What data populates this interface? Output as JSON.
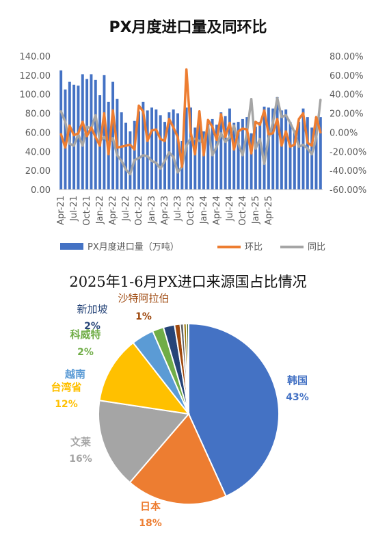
{
  "chart_data": [
    {
      "type": "bar",
      "title": "PX月度进口量及同环比",
      "x_tick_labels": [
        "Apr-21",
        "Jul-21",
        "Oct-21",
        "Jan-22",
        "Apr-22",
        "Jul-22",
        "Oct-22",
        "Jan-23",
        "Apr-23",
        "Jul-23",
        "Oct-23",
        "Jan-24",
        "Apr-24",
        "Jul-24",
        "Oct-24",
        "Jan-25",
        "Apr-25"
      ],
      "y_left": {
        "ylim": [
          0,
          140
        ],
        "ticks": [
          "0.00",
          "20.00",
          "40.00",
          "60.00",
          "80.00",
          "100.00",
          "120.00",
          "140.00"
        ]
      },
      "y_right": {
        "ylim": [
          -60,
          80
        ],
        "ticks": [
          "-60.00%",
          "-40.00%",
          "-20.00%",
          "0.00%",
          "20.00%",
          "40.00%",
          "60.00%",
          "80.00%"
        ]
      },
      "legend": [
        "PX月度进口量（万吨）",
        "环比",
        "同比"
      ],
      "legend_position": "bottom",
      "grid": false,
      "colors": {
        "bars": "#4472C4",
        "mom": "#ED7D31",
        "yoy": "#A5A5A5"
      },
      "series": [
        {
          "name": "PX月度进口量（万吨）",
          "axis": "left",
          "kind": "bar",
          "values": [
            125,
            105,
            113,
            110,
            109,
            121,
            116,
            121,
            115,
            99,
            120,
            92,
            113,
            95,
            81,
            70,
            61,
            72,
            82,
            92,
            83,
            86,
            84,
            78,
            71,
            81,
            84,
            80,
            51,
            86,
            86,
            65,
            80,
            61,
            69,
            74,
            68,
            81,
            77,
            85,
            70,
            71,
            74,
            76,
            59,
            66,
            71,
            87,
            86,
            85,
            97,
            83,
            84,
            71,
            62,
            71,
            85,
            76,
            65,
            76,
            76
          ]
        },
        {
          "name": "环比",
          "axis": "right",
          "kind": "line",
          "values": [
            -2,
            -16,
            7,
            -3,
            -1,
            11,
            -4,
            5,
            -5,
            -14,
            20,
            -23,
            23,
            -16,
            -15,
            -14,
            -13,
            -18,
            28,
            22,
            -9,
            2,
            3,
            -7,
            -9,
            14,
            5,
            -5,
            -36,
            66,
            0,
            -23,
            22,
            -24,
            13,
            6,
            -8,
            19,
            -5,
            10,
            -18,
            1,
            4,
            3,
            -22,
            11,
            8,
            23,
            -2,
            -1,
            14,
            -14,
            1,
            -15,
            -13,
            14,
            20,
            -11,
            -14,
            16,
            0
          ]
        },
        {
          "name": "同比",
          "axis": "right",
          "kind": "line",
          "values": [
            22,
            11,
            -12,
            -14,
            -2,
            -14,
            6,
            4,
            18,
            -9,
            -5,
            -11,
            -6,
            -24,
            -30,
            -39,
            -44,
            -29,
            -27,
            -24,
            -25,
            -30,
            -32,
            -38,
            -30,
            -21,
            -26,
            -42,
            -36,
            -14,
            -6,
            -7,
            -9,
            -11,
            7,
            -24,
            -15,
            -1,
            -10,
            -5,
            7,
            -12,
            -24,
            0,
            35,
            -17,
            -7,
            -33,
            -6,
            10,
            36,
            16,
            18,
            10,
            0,
            -15,
            -13,
            -17,
            -23,
            -6,
            34
          ]
        }
      ]
    },
    {
      "type": "pie",
      "title": "2025年1-6月PX进口来源国占比情况",
      "slices": [
        {
          "label": "韩国",
          "pct": "43%",
          "value": 43,
          "color": "#4472C4"
        },
        {
          "label": "日本",
          "pct": "18%",
          "value": 18,
          "color": "#ED7D31"
        },
        {
          "label": "文莱",
          "pct": "16%",
          "value": 16,
          "color": "#A5A5A5"
        },
        {
          "label": "台湾省",
          "pct": "12%",
          "value": 12,
          "color": "#FFC000"
        },
        {
          "label": "越南",
          "pct": "",
          "value": 4,
          "color": "#5B9BD5"
        },
        {
          "label": "科威特",
          "pct": "2%",
          "value": 2,
          "color": "#70AD47"
        },
        {
          "label": "新加坡",
          "pct": "2%",
          "value": 2,
          "color": "#264478"
        },
        {
          "label": "沙特阿拉伯",
          "pct": "1%",
          "value": 1,
          "color": "#9E480E"
        },
        {
          "label": "",
          "pct": "",
          "value": 0.6,
          "color": "#636363"
        },
        {
          "label": "",
          "pct": "",
          "value": 0.5,
          "color": "#997300"
        },
        {
          "label": "",
          "pct": "",
          "value": 0.4,
          "color": "#43682B"
        }
      ]
    }
  ]
}
